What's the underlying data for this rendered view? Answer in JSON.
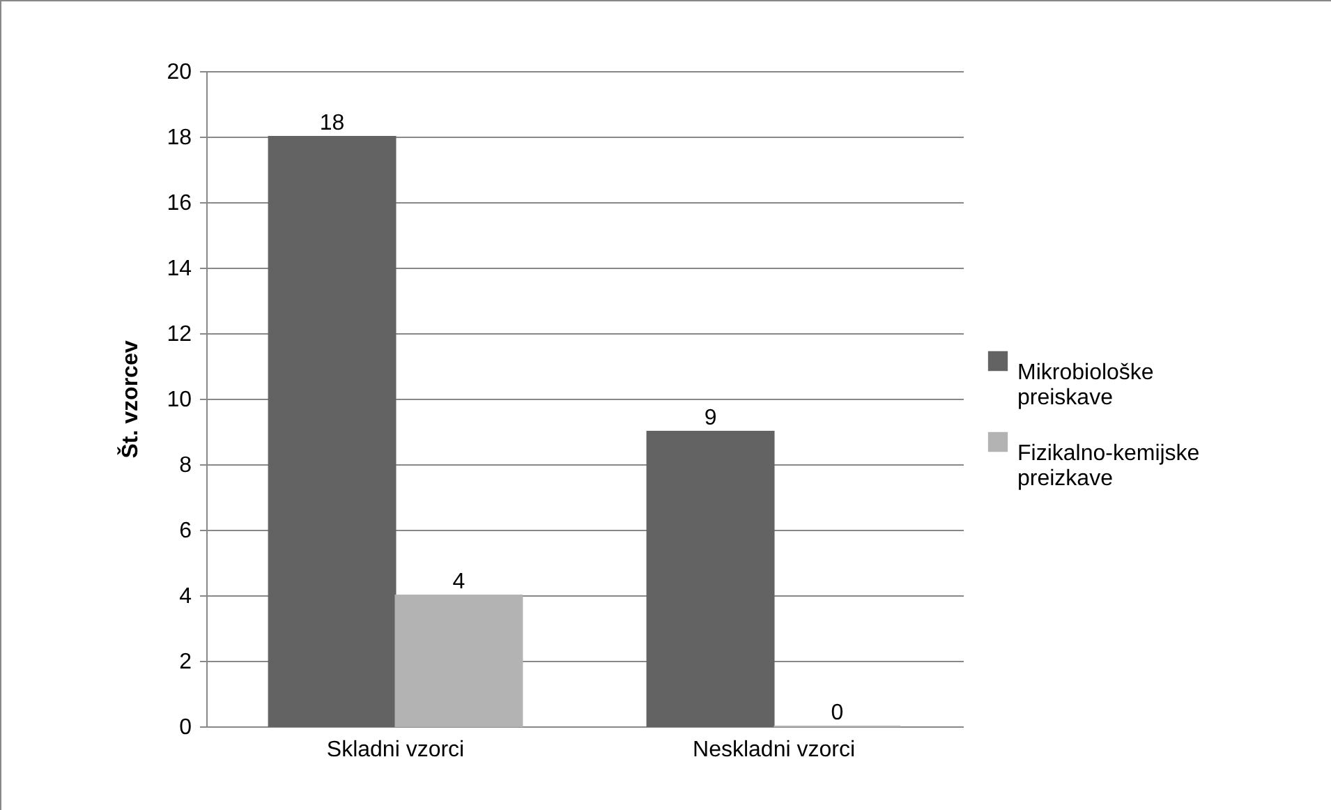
{
  "chart_data": {
    "type": "bar",
    "ylabel": "Št. vzorcev",
    "categories": [
      "Skladni vzorci",
      "Neskladni vzorci"
    ],
    "series": [
      {
        "name": "Mikrobiološke preiskave",
        "color": "#636363",
        "values": [
          18,
          9
        ]
      },
      {
        "name": "Fizikalno-kemijske preizkave",
        "color": "#b3b3b3",
        "values": [
          4,
          0
        ]
      }
    ],
    "ylim": [
      0,
      20
    ],
    "yticks": [
      0,
      2,
      4,
      6,
      8,
      10,
      12,
      14,
      16,
      18,
      20
    ],
    "grid": "y",
    "legend": "right",
    "data_labels": true
  }
}
